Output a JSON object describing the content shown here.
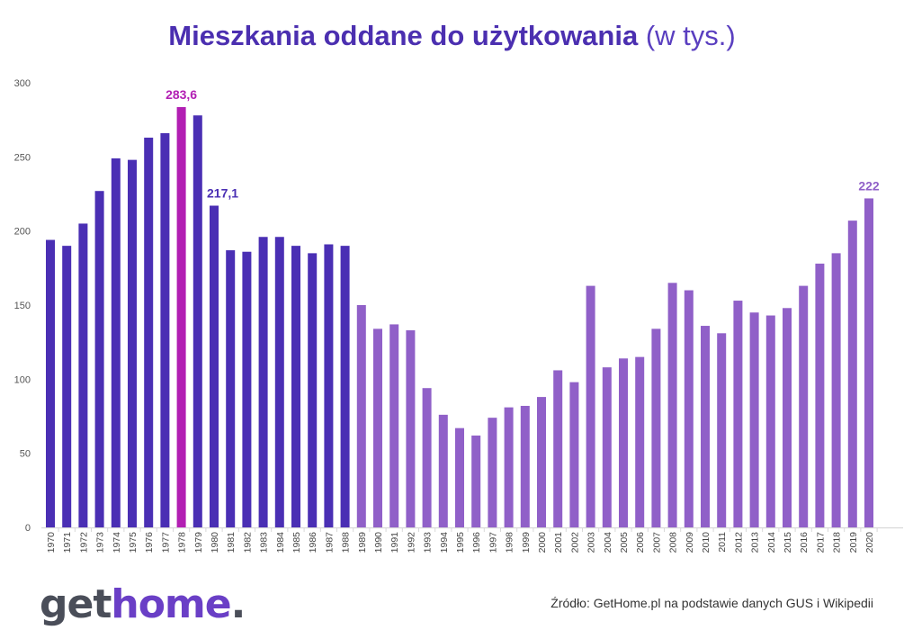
{
  "title_bold": "Mieszkania oddane do użytkowania",
  "title_light": "(w tys.)",
  "logo": {
    "part1": "get",
    "part2": "home",
    "part3": "."
  },
  "source": "Źródło: GetHome.pl na podstawie danych GUS i Wikipedii",
  "colors": {
    "early": "#4a2fb4",
    "peak": "#b21fb3",
    "late": "#9060c8",
    "grid": "#d9d9d9"
  },
  "chart_data": {
    "type": "bar",
    "title": "Mieszkania oddane do użytkowania (w tys.)",
    "categories": [
      "1970",
      "1971",
      "1972",
      "1973",
      "1974",
      "1975",
      "1976",
      "1977",
      "1978",
      "1979",
      "1980",
      "1981",
      "1982",
      "1983",
      "1984",
      "1985",
      "1986",
      "1987",
      "1988",
      "1989",
      "1990",
      "1991",
      "1992",
      "1993",
      "1994",
      "1995",
      "1996",
      "1997",
      "1998",
      "1999",
      "2000",
      "2001",
      "2002",
      "2003",
      "2004",
      "2005",
      "2006",
      "2007",
      "2008",
      "2009",
      "2010",
      "2011",
      "2012",
      "2013",
      "2014",
      "2015",
      "2016",
      "2017",
      "2018",
      "2019",
      "2020"
    ],
    "values": [
      194,
      190,
      205,
      227,
      249,
      248,
      263,
      266,
      283.6,
      278,
      217.1,
      187,
      186,
      196,
      196,
      190,
      185,
      191,
      190,
      150,
      134,
      137,
      133,
      94,
      76,
      67,
      62,
      74,
      81,
      82,
      88,
      106,
      98,
      163,
      108,
      114,
      115,
      134,
      165,
      160,
      136,
      131,
      153,
      145,
      143,
      148,
      163,
      178,
      185,
      207,
      222
    ],
    "ylim": [
      0,
      300
    ],
    "yticks": [
      "0",
      "50",
      "100",
      "150",
      "200",
      "250",
      "300"
    ],
    "data_labels": [
      {
        "category": "1978",
        "text": "283,6"
      },
      {
        "category": "1980",
        "text": "217,1"
      },
      {
        "category": "2020",
        "text": "222"
      }
    ],
    "grid": false,
    "legend": "none"
  }
}
